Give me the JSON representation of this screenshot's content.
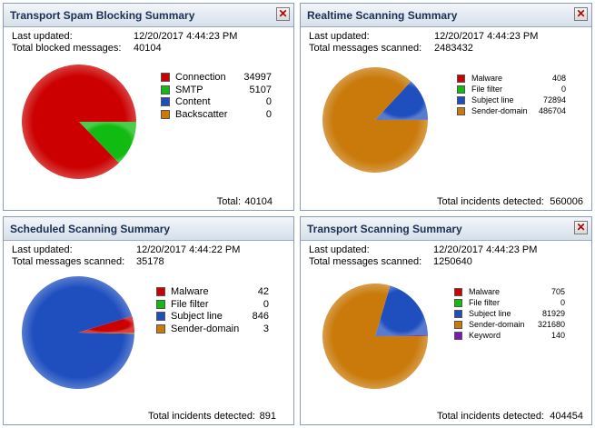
{
  "colors": {
    "red": "#cc0000",
    "green": "#11bb11",
    "blue": "#1f4fbf",
    "orange": "#c97a0a",
    "purple": "#7a18b8"
  },
  "panels": [
    {
      "title": "Transport Spam Blocking Summary",
      "updated_label": "Last updated:",
      "updated_value": "12/20/2017 4:44:23 PM",
      "count_label": "Total blocked messages:",
      "count_value": "40104",
      "close_icon": "close-icon",
      "legend": [
        {
          "name": "Connection",
          "value": "34997",
          "color": "red"
        },
        {
          "name": "SMTP",
          "value": "5107",
          "color": "green"
        },
        {
          "name": "Content",
          "value": "0",
          "color": "blue"
        },
        {
          "name": "Backscatter",
          "value": "0",
          "color": "orange"
        }
      ],
      "total_label": "Total:",
      "total_value": "40104"
    },
    {
      "title": "Realtime Scanning Summary",
      "updated_label": "Last updated:",
      "updated_value": "12/20/2017 4:44:23 PM",
      "count_label": "Total messages scanned:",
      "count_value": "2483432",
      "close_icon": "close-icon",
      "legend": [
        {
          "name": "Malware",
          "value": "408",
          "color": "red"
        },
        {
          "name": "File filter",
          "value": "0",
          "color": "green"
        },
        {
          "name": "Subject line",
          "value": "72894",
          "color": "blue"
        },
        {
          "name": "Sender-domain",
          "value": "486704",
          "color": "orange"
        }
      ],
      "total_label": "Total incidents detected:",
      "total_value": "560006"
    },
    {
      "title": "Scheduled Scanning Summary",
      "updated_label": "Last updated:",
      "updated_value": "12/20/2017 4:44:22 PM",
      "count_label": "Total messages scanned:",
      "count_value": "35178",
      "close_icon": "close-icon",
      "legend": [
        {
          "name": "Malware",
          "value": "42",
          "color": "red"
        },
        {
          "name": "File filter",
          "value": "0",
          "color": "green"
        },
        {
          "name": "Subject line",
          "value": "846",
          "color": "blue"
        },
        {
          "name": "Sender-domain",
          "value": "3",
          "color": "orange"
        }
      ],
      "total_label": "Total incidents detected:",
      "total_value": "891"
    },
    {
      "title": "Transport Scanning Summary",
      "updated_label": "Last updated:",
      "updated_value": "12/20/2017 4:44:23 PM",
      "count_label": "Total messages scanned:",
      "count_value": "1250640",
      "close_icon": "close-icon",
      "legend": [
        {
          "name": "Malware",
          "value": "705",
          "color": "red"
        },
        {
          "name": "File filter",
          "value": "0",
          "color": "green"
        },
        {
          "name": "Subject line",
          "value": "81929",
          "color": "blue"
        },
        {
          "name": "Sender-domain",
          "value": "321680",
          "color": "orange"
        },
        {
          "name": "Keyword",
          "value": "140",
          "color": "purple"
        }
      ],
      "total_label": "Total incidents detected:",
      "total_value": "404454"
    }
  ]
}
